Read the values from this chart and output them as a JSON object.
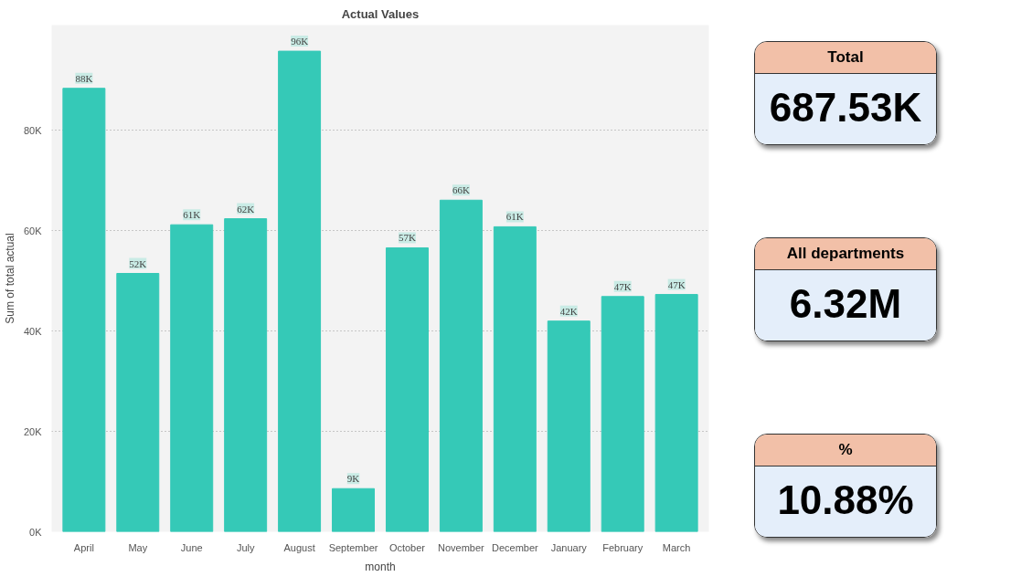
{
  "chart_data": [
    {
      "type": "bar",
      "title": "Actual Values",
      "xlabel": "month",
      "ylabel": "Sum of total actual",
      "categories": [
        "April",
        "May",
        "June",
        "July",
        "August",
        "September",
        "October",
        "November",
        "December",
        "January",
        "February",
        "March"
      ],
      "values": [
        88.4,
        51.5,
        61.2,
        62.4,
        95.8,
        8.6,
        56.6,
        66.1,
        60.8,
        42.0,
        46.9,
        47.3
      ],
      "value_labels": [
        "88K",
        "52K",
        "61K",
        "62K",
        "96K",
        "9K",
        "57K",
        "66K",
        "61K",
        "42K",
        "47K",
        "47K"
      ],
      "color": "#35c9b7",
      "ylim": [
        0,
        101
      ],
      "yticks": [
        {
          "value": 0,
          "label": "0K"
        },
        {
          "value": 20,
          "label": "20K"
        },
        {
          "value": 40,
          "label": "40K"
        },
        {
          "value": 60,
          "label": "60K"
        },
        {
          "value": 80,
          "label": "80K"
        }
      ],
      "grid": "y"
    },
    {
      "type": "other",
      "title": "Total",
      "annotations": [
        "687.53K"
      ]
    },
    {
      "type": "other",
      "title": "All departments",
      "annotations": [
        "6.32M"
      ]
    },
    {
      "type": "other",
      "title": "%",
      "annotations": [
        "10.88%"
      ]
    }
  ]
}
